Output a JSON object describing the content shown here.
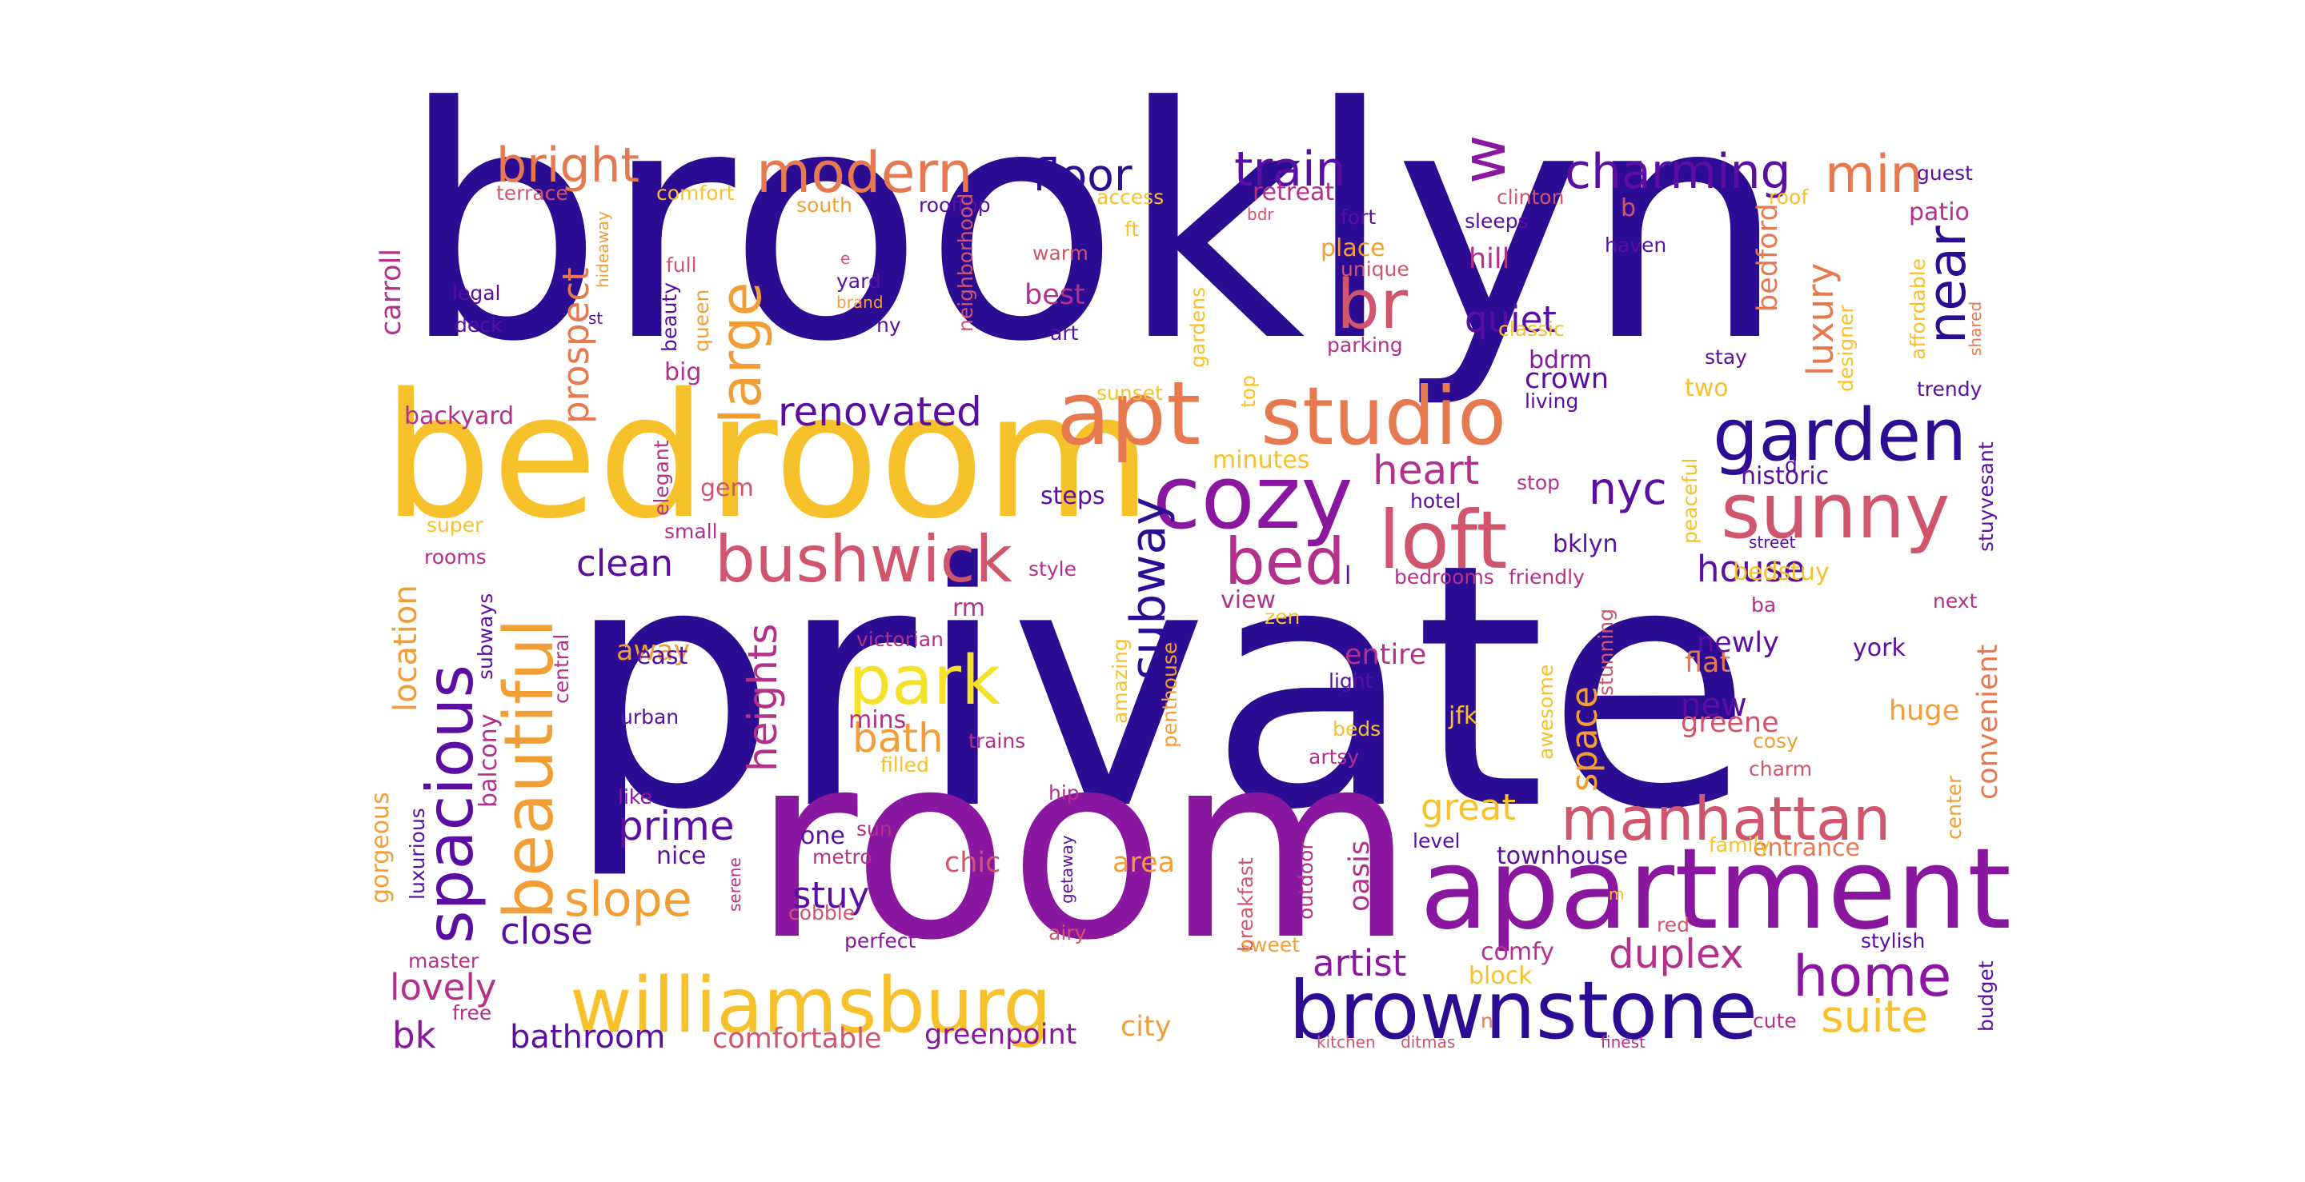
{
  "palette": {
    "c1": "#2b0c92",
    "c2": "#5a0ea2",
    "c3": "#8a17a0",
    "c4": "#b3308b",
    "c5": "#d0566e",
    "c6": "#e6794f",
    "c7": "#f29e37",
    "c8": "#f7c12c",
    "c9": "#f3e12a"
  },
  "words": [
    "brooklyn",
    "private",
    "room",
    "bedroom",
    "apartment",
    "williamsburg",
    "brownstone",
    "apt",
    "studio",
    "cozy",
    "sunny",
    "garden",
    "loft",
    "bed",
    "bushwick",
    "park",
    "spacious",
    "beautiful",
    "manhattan",
    "charming",
    "train",
    "modern",
    "bright",
    "floor",
    "w",
    "min",
    "br",
    "large",
    "near",
    "renovated",
    "home",
    "slope",
    "subway",
    "duplex",
    "nyc",
    "heart",
    "quiet",
    "luxury",
    "prospect",
    "suite",
    "heights",
    "bath",
    "clean",
    "house",
    "great",
    "space",
    "prime",
    "stuy",
    "close",
    "lovely",
    "bk",
    "artist",
    "bathroom",
    "greenpoint",
    "comfortable",
    "location",
    "new",
    "crown",
    "hill",
    "historic",
    "townhouse",
    "chic",
    "area",
    "view",
    "entire",
    "newly",
    "away",
    "flat",
    "greene",
    "bedford",
    "backyard",
    "carroll",
    "best",
    "two",
    "bedstuy",
    "patio",
    "oasis",
    "huge",
    "block",
    "comfy",
    "gorgeous",
    "balcony",
    "convenient",
    "central",
    "entrance",
    "bklyn",
    "l",
    "steps",
    "minutes",
    "one",
    "nice",
    "mins",
    "gem",
    "retreat",
    "bdrm",
    "guest",
    "terrace",
    "comfort",
    "south",
    "rooftop",
    "access",
    "ft",
    "clinton",
    "roof",
    "b",
    "bdr",
    "fort",
    "sleeps",
    "haven",
    "full",
    "e",
    "warm",
    "place",
    "unique",
    "legal",
    "hideaway",
    "yard",
    "brand",
    "deck",
    "beauty",
    "queen",
    "neighborhood",
    "ny",
    "art",
    "st",
    "big",
    "classic",
    "parking",
    "gardens",
    "affordable",
    "shared",
    "designer",
    "stay",
    "living",
    "sunset",
    "top",
    "trendy",
    "elegant",
    "super",
    "small",
    "hotel",
    "stop",
    "d",
    "peaceful",
    "stuyvesant",
    "rooms",
    "style",
    "bedrooms",
    "friendly",
    "street",
    "rm",
    "zen",
    "next",
    "ba",
    "york",
    "victorian",
    "east",
    "penthouse",
    "amazing",
    "light",
    "stunning",
    "awesome",
    "jfk",
    "urban",
    "trains",
    "filled",
    "beds",
    "artsy",
    "cosy",
    "charm",
    "center",
    "subways",
    "hip",
    "like",
    "sun",
    "metro",
    "level",
    "family",
    "luxurious",
    "getaway",
    "serene",
    "cobble",
    "outdoor",
    "breakfast",
    "red",
    "m",
    "perfect",
    "airy",
    "sweet",
    "stylish",
    "master",
    "free",
    "city",
    "cute",
    "n",
    "budget",
    "kitchen",
    "ditmas",
    "finest"
  ]
}
